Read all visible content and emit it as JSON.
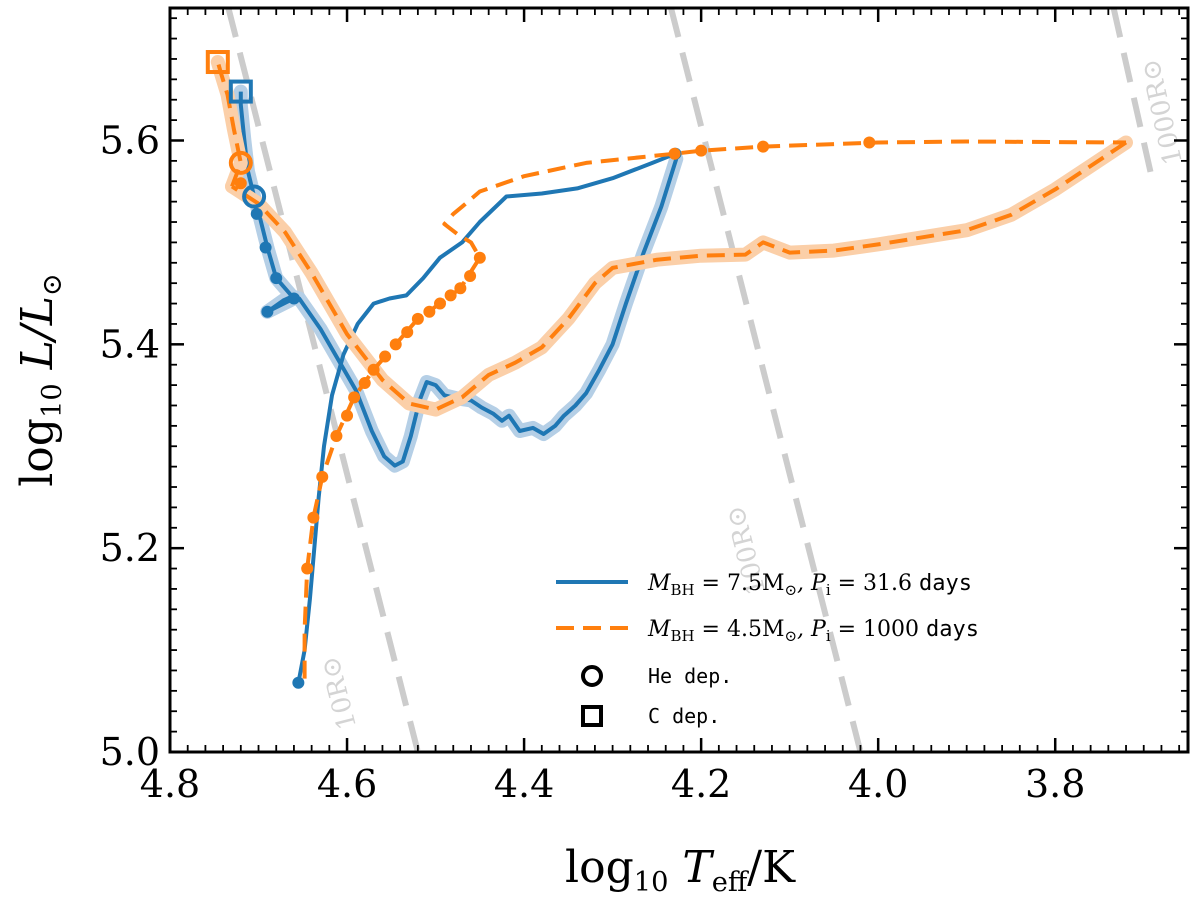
{
  "chart_data": {
    "type": "line",
    "title": "",
    "xlabel": {
      "pre": "log",
      "sub": "10",
      "main": " T",
      "msub": "eff",
      "post": "/K"
    },
    "ylabel": {
      "pre": "log",
      "sub": "10",
      "main": " L/L",
      "msub": "⊙"
    },
    "xlim": [
      4.8,
      3.65
    ],
    "ylim": [
      5.0,
      5.73
    ],
    "xticks": [
      4.8,
      4.6,
      4.4,
      4.2,
      4.0,
      3.8
    ],
    "xtick_labels": [
      "4.8",
      "4.6",
      "4.4",
      "4.2",
      "4.0",
      "3.8"
    ],
    "yticks": [
      5.0,
      5.2,
      5.4,
      5.6
    ],
    "ytick_labels": [
      "5.0",
      "5.2",
      "5.4",
      "5.6"
    ],
    "colors": {
      "blue": "#1f77b4",
      "orange": "#ff7f0e",
      "radius_line": "#cccccc"
    },
    "radius_lines": [
      {
        "label": "10R⊙",
        "points": [
          [
            4.734,
            5.73
          ],
          [
            4.52,
            5.0
          ]
        ],
        "label_at": [
          4.6,
          5.06
        ]
      },
      {
        "label": "100R⊙",
        "points": [
          [
            4.234,
            5.73
          ],
          [
            4.02,
            5.0
          ]
        ],
        "label_at": [
          4.14,
          5.2
        ]
      },
      {
        "label": "1000R⊙",
        "points": [
          [
            3.734,
            5.73
          ],
          [
            3.69,
            5.56
          ]
        ],
        "label_at": [
          3.67,
          5.63
        ]
      }
    ],
    "series": [
      {
        "name": "MBH = 7.5 M⊙, Pi = 31.6 days",
        "style": "solid",
        "color": "#1f77b4",
        "main_track": [
          [
            4.655,
            5.068
          ],
          [
            4.648,
            5.1
          ],
          [
            4.642,
            5.15
          ],
          [
            4.637,
            5.2
          ],
          [
            4.632,
            5.25
          ],
          [
            4.626,
            5.3
          ],
          [
            4.617,
            5.35
          ],
          [
            4.604,
            5.39
          ],
          [
            4.588,
            5.42
          ],
          [
            4.57,
            5.44
          ],
          [
            4.552,
            5.445
          ],
          [
            4.533,
            5.448
          ],
          [
            4.514,
            5.465
          ],
          [
            4.495,
            5.485
          ],
          [
            4.47,
            5.5
          ],
          [
            4.45,
            5.52
          ],
          [
            4.42,
            5.545
          ],
          [
            4.38,
            5.548
          ],
          [
            4.34,
            5.553
          ],
          [
            4.3,
            5.563
          ],
          [
            4.255,
            5.578
          ],
          [
            4.229,
            5.587
          ]
        ],
        "main_markers": [
          [
            4.655,
            5.068
          ],
          [
            4.229,
            5.587
          ]
        ],
        "final_track": [
          [
            4.69,
            5.432
          ],
          [
            4.672,
            5.443
          ],
          [
            4.662,
            5.447
          ],
          [
            4.654,
            5.445
          ],
          [
            4.63,
            5.415
          ],
          [
            4.61,
            5.385
          ],
          [
            4.59,
            5.355
          ],
          [
            4.572,
            5.315
          ],
          [
            4.558,
            5.29
          ],
          [
            4.546,
            5.281
          ],
          [
            4.537,
            5.285
          ],
          [
            4.528,
            5.31
          ],
          [
            4.518,
            5.345
          ],
          [
            4.51,
            5.363
          ],
          [
            4.5,
            5.36
          ],
          [
            4.49,
            5.35
          ],
          [
            4.476,
            5.347
          ],
          [
            4.46,
            5.345
          ],
          [
            4.448,
            5.338
          ],
          [
            4.435,
            5.332
          ],
          [
            4.425,
            5.325
          ],
          [
            4.417,
            5.33
          ],
          [
            4.405,
            5.315
          ],
          [
            4.39,
            5.318
          ],
          [
            4.378,
            5.312
          ],
          [
            4.365,
            5.32
          ],
          [
            4.355,
            5.33
          ],
          [
            4.342,
            5.34
          ],
          [
            4.33,
            5.352
          ],
          [
            4.315,
            5.375
          ],
          [
            4.3,
            5.4
          ],
          [
            4.285,
            5.44
          ],
          [
            4.265,
            5.49
          ],
          [
            4.245,
            5.535
          ],
          [
            4.228,
            5.582
          ]
        ],
        "upper_track": [
          [
            4.69,
            5.432
          ],
          [
            4.66,
            5.445
          ],
          [
            4.68,
            5.465
          ],
          [
            4.69,
            5.495
          ],
          [
            4.7,
            5.53
          ],
          [
            4.705,
            5.545
          ],
          [
            4.712,
            5.57
          ],
          [
            4.716,
            5.6
          ],
          [
            4.72,
            5.635
          ],
          [
            4.72,
            5.648
          ]
        ],
        "upper_markers": [
          [
            4.69,
            5.432
          ],
          [
            4.66,
            5.445
          ],
          [
            4.68,
            5.465
          ],
          [
            4.692,
            5.495
          ],
          [
            4.702,
            5.528
          ]
        ],
        "he_dep": [
          4.705,
          5.545
        ],
        "c_dep": [
          4.72,
          5.648
        ]
      },
      {
        "name": "MBH = 4.5 M⊙, Pi = 1000 days",
        "style": "dashed",
        "color": "#ff7f0e",
        "main_track": [
          [
            4.648,
            5.072
          ],
          [
            4.648,
            5.12
          ],
          [
            4.645,
            5.18
          ],
          [
            4.638,
            5.23
          ],
          [
            4.628,
            5.27
          ],
          [
            4.612,
            5.31
          ],
          [
            4.592,
            5.348
          ],
          [
            4.57,
            5.375
          ],
          [
            4.545,
            5.4
          ],
          [
            4.52,
            5.425
          ],
          [
            4.495,
            5.44
          ],
          [
            4.472,
            5.455
          ],
          [
            4.45,
            5.485
          ],
          [
            4.46,
            5.5
          ],
          [
            4.475,
            5.508
          ],
          [
            4.49,
            5.518
          ],
          [
            4.48,
            5.528
          ],
          [
            4.47,
            5.535
          ],
          [
            4.45,
            5.55
          ],
          [
            4.4,
            5.565
          ],
          [
            4.33,
            5.578
          ],
          [
            4.23,
            5.587
          ],
          [
            4.2,
            5.59
          ],
          [
            4.13,
            5.594
          ],
          [
            4.0,
            5.598
          ],
          [
            3.9,
            5.599
          ],
          [
            3.72,
            5.598
          ]
        ],
        "main_markers": [
          [
            4.645,
            5.18
          ],
          [
            4.638,
            5.23
          ],
          [
            4.628,
            5.27
          ],
          [
            4.612,
            5.31
          ],
          [
            4.6,
            5.33
          ],
          [
            4.592,
            5.348
          ],
          [
            4.58,
            5.362
          ],
          [
            4.57,
            5.375
          ],
          [
            4.557,
            5.388
          ],
          [
            4.545,
            5.4
          ],
          [
            4.532,
            5.412
          ],
          [
            4.52,
            5.425
          ],
          [
            4.507,
            5.432
          ],
          [
            4.495,
            5.44
          ],
          [
            4.483,
            5.448
          ],
          [
            4.472,
            5.455
          ],
          [
            4.461,
            5.467
          ],
          [
            4.45,
            5.485
          ],
          [
            4.23,
            5.587
          ],
          [
            4.2,
            5.59
          ],
          [
            4.13,
            5.594
          ],
          [
            4.01,
            5.598
          ]
        ],
        "final_track": [
          [
            3.72,
            5.598
          ],
          [
            3.76,
            5.575
          ],
          [
            3.8,
            5.552
          ],
          [
            3.85,
            5.527
          ],
          [
            3.9,
            5.512
          ],
          [
            3.95,
            5.505
          ],
          [
            4.0,
            5.498
          ],
          [
            4.05,
            5.492
          ],
          [
            4.1,
            5.49
          ],
          [
            4.13,
            5.5
          ],
          [
            4.15,
            5.488
          ],
          [
            4.2,
            5.487
          ],
          [
            4.25,
            5.483
          ],
          [
            4.3,
            5.475
          ],
          [
            4.32,
            5.46
          ],
          [
            4.35,
            5.425
          ],
          [
            4.38,
            5.397
          ],
          [
            4.41,
            5.382
          ],
          [
            4.44,
            5.37
          ],
          [
            4.47,
            5.348
          ],
          [
            4.5,
            5.336
          ],
          [
            4.53,
            5.342
          ],
          [
            4.56,
            5.365
          ],
          [
            4.6,
            5.41
          ],
          [
            4.64,
            5.47
          ],
          [
            4.67,
            5.51
          ],
          [
            4.7,
            5.538
          ],
          [
            4.73,
            5.555
          ]
        ],
        "upper_track": [
          [
            4.73,
            5.555
          ],
          [
            4.72,
            5.578
          ],
          [
            4.728,
            5.612
          ],
          [
            4.735,
            5.645
          ],
          [
            4.742,
            5.665
          ],
          [
            4.746,
            5.677
          ]
        ],
        "upper_markers": [
          [
            4.72,
            5.558
          ]
        ],
        "he_dep": [
          4.72,
          5.578
        ],
        "c_dep": [
          4.746,
          5.677
        ]
      }
    ],
    "legend": {
      "placement": "lower-right",
      "entries": [
        {
          "type": "line-solid",
          "color": "#1f77b4",
          "math": "M",
          "sub1": "BH",
          "mid": " = 7.5M",
          "sub2": "⊙",
          "p": ", P",
          "psub": "i",
          "val": " = 31.6 ",
          "unit": "days"
        },
        {
          "type": "line-dashed",
          "color": "#ff7f0e",
          "math": "M",
          "sub1": "BH",
          "mid": " = 4.5M",
          "sub2": "⊙",
          "p": ", P",
          "psub": "i",
          "val": " = 1000 ",
          "unit": "days"
        },
        {
          "type": "circle",
          "label": "He dep."
        },
        {
          "type": "square",
          "label": "C dep."
        }
      ]
    }
  }
}
